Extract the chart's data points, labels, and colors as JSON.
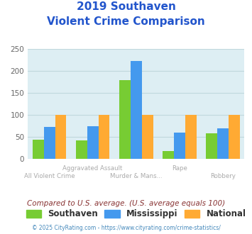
{
  "title_line1": "2019 Southaven",
  "title_line2": "Violent Crime Comparison",
  "title_color": "#2255cc",
  "categories": [
    "All Violent Crime",
    "Aggravated Assault",
    "Murder & Mans...",
    "Rape",
    "Robbery"
  ],
  "labels_upper": [
    "",
    "Aggravated Assault",
    "",
    "Rape",
    ""
  ],
  "labels_lower": [
    "All Violent Crime",
    "",
    "Murder & Mans...",
    "",
    "Robbery"
  ],
  "southaven": [
    44,
    42,
    180,
    18,
    58
  ],
  "mississippi": [
    73,
    75,
    223,
    60,
    70
  ],
  "national": [
    100,
    100,
    100,
    100,
    100
  ],
  "southaven_color": "#77cc33",
  "mississippi_color": "#4499ee",
  "national_color": "#ffaa33",
  "ylim": [
    0,
    250
  ],
  "yticks": [
    0,
    50,
    100,
    150,
    200,
    250
  ],
  "bg_color": "#ddeef3",
  "grid_color": "#c0d8dd",
  "subtitle": "Compared to U.S. average. (U.S. average equals 100)",
  "subtitle_color": "#883333",
  "footer": "© 2025 CityRating.com - https://www.cityrating.com/crime-statistics/",
  "footer_color": "#4488bb",
  "legend_labels": [
    "Southaven",
    "Mississippi",
    "National"
  ],
  "upper_label_color": "#aaaaaa",
  "lower_label_color": "#aaaaaa"
}
